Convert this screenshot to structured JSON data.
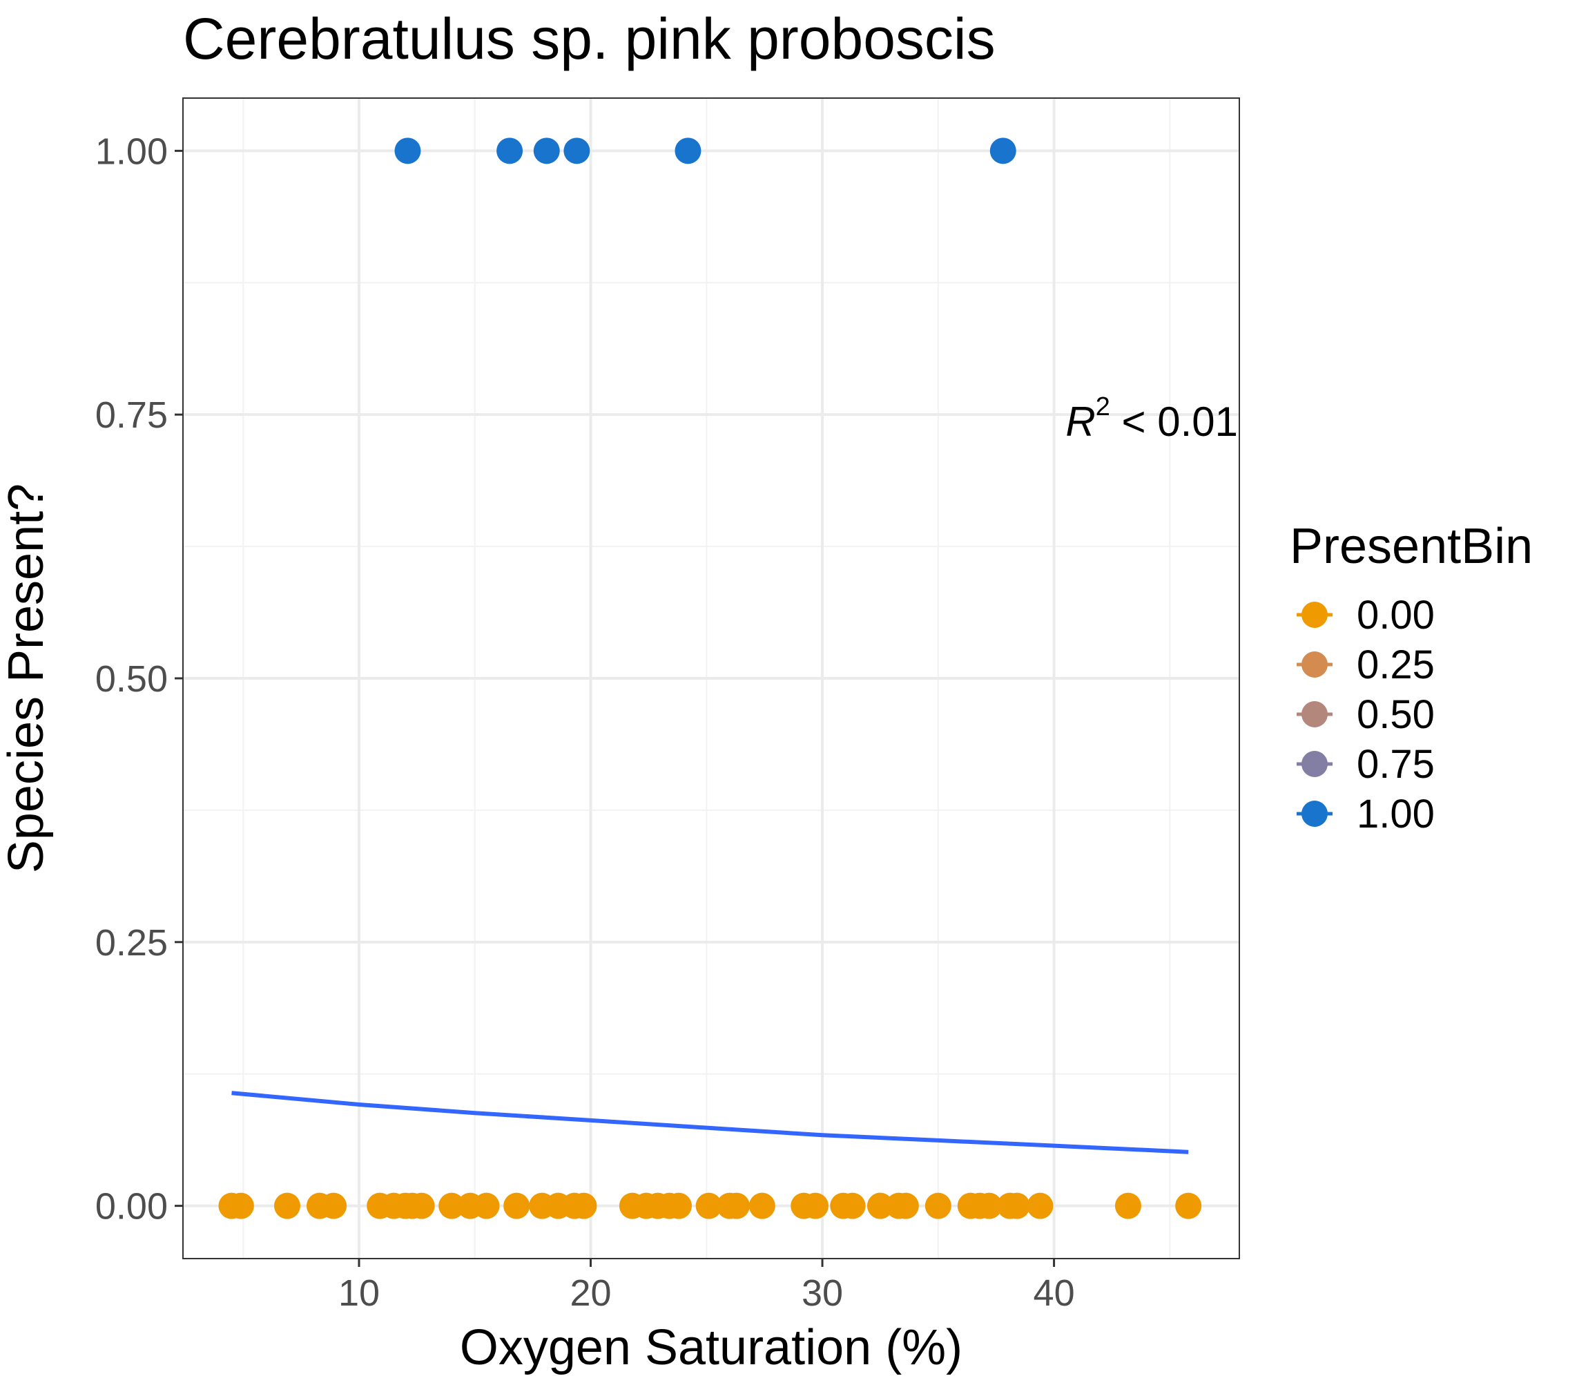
{
  "chart_data": {
    "type": "scatter",
    "title": "Cerebratulus sp. pink proboscis",
    "xlabel": "Oxygen Saturation (%)",
    "ylabel": "Species Present?",
    "xlim": [
      2.4,
      48.0
    ],
    "ylim": [
      -0.05,
      1.05
    ],
    "x_ticks": [
      10,
      20,
      30,
      40
    ],
    "y_ticks": [
      0.0,
      0.25,
      0.5,
      0.75,
      1.0
    ],
    "x_tick_labels": [
      "10",
      "20",
      "30",
      "40"
    ],
    "y_tick_labels": [
      "0.00",
      "0.25",
      "0.50",
      "0.75",
      "1.00"
    ],
    "grid": true,
    "legend": {
      "title": "PresentBin",
      "position": "right",
      "entries": [
        {
          "label": "0.00",
          "color": "#EE9A00"
        },
        {
          "label": "0.25",
          "color": "#D38B50"
        },
        {
          "label": "0.50",
          "color": "#B3877C"
        },
        {
          "label": "0.75",
          "color": "#837EA4"
        },
        {
          "label": "1.00",
          "color": "#1874CD"
        }
      ]
    },
    "annotation": {
      "r_symbol": "R",
      "superscript": "2",
      "relation": " < 0.01"
    },
    "series": [
      {
        "name": "0.00",
        "color": "#EE9A00",
        "y": 0,
        "x": [
          4.5,
          4.9,
          6.9,
          8.3,
          8.9,
          10.9,
          11.5,
          12.0,
          12.3,
          12.7,
          14.0,
          14.8,
          15.5,
          16.8,
          17.9,
          18.6,
          19.3,
          19.7,
          21.8,
          22.4,
          22.9,
          23.4,
          23.8,
          25.1,
          26.0,
          26.3,
          27.4,
          29.2,
          29.7,
          30.9,
          31.3,
          32.5,
          33.3,
          33.6,
          35.0,
          36.4,
          36.8,
          37.2,
          38.1,
          38.4,
          39.4,
          43.2,
          45.8
        ]
      },
      {
        "name": "1.00",
        "color": "#1874CD",
        "y": 1,
        "x": [
          12.1,
          16.5,
          18.1,
          19.4,
          24.2,
          37.8
        ]
      }
    ],
    "fit_line": {
      "color": "#3366FF",
      "x": [
        4.5,
        10,
        15,
        20,
        25,
        30,
        35,
        40,
        45.8
      ],
      "y": [
        0.107,
        0.096,
        0.088,
        0.081,
        0.074,
        0.067,
        0.062,
        0.057,
        0.051
      ]
    }
  }
}
